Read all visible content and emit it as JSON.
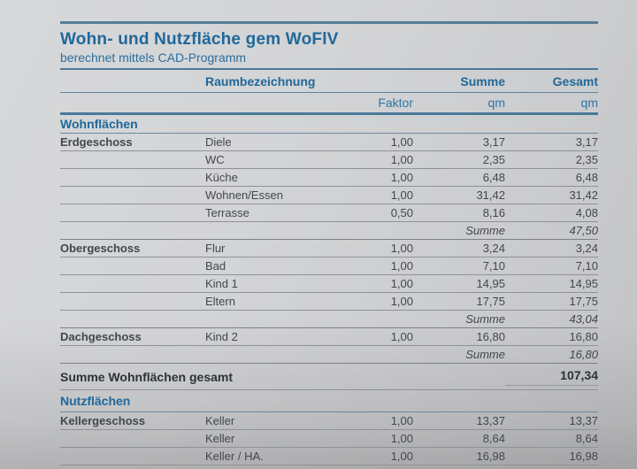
{
  "page": {
    "title": "Wohn- und Nutzfläche gem WoFlV",
    "subtitle": "berechnet mittels CAD-Programm"
  },
  "colors": {
    "accent_blue": "#20689a",
    "line_blue": "#4a7999",
    "line_gray": "#8f9295",
    "text_dark": "#33373b",
    "page_gray": "#cfd0d2"
  },
  "table": {
    "header": {
      "room": "Raumbezeichnung",
      "faktor": "Faktor",
      "summe": "Summe",
      "gesamt": "Gesamt",
      "unit": "qm"
    }
  },
  "sections": [
    {
      "label": "Wohnflächen",
      "groups": [
        {
          "floor": "Erdgeschoss",
          "rooms": [
            {
              "name": "Diele",
              "faktor": "1,00",
              "summe": "3,17",
              "gesamt": "3,17"
            },
            {
              "name": "WC",
              "faktor": "1,00",
              "summe": "2,35",
              "gesamt": "2,35"
            },
            {
              "name": "Küche",
              "faktor": "1,00",
              "summe": "6,48",
              "gesamt": "6,48"
            },
            {
              "name": "Wohnen/Essen",
              "faktor": "1,00",
              "summe": "31,42",
              "gesamt": "31,42"
            },
            {
              "name": "Terrasse",
              "faktor": "0,50",
              "summe": "8,16",
              "gesamt": "4,08"
            }
          ],
          "summe_label": "Summe",
          "summe_value": "47,50"
        },
        {
          "floor": "Obergeschoss",
          "rooms": [
            {
              "name": "Flur",
              "faktor": "1,00",
              "summe": "3,24",
              "gesamt": "3,24"
            },
            {
              "name": "Bad",
              "faktor": "1,00",
              "summe": "7,10",
              "gesamt": "7,10"
            },
            {
              "name": "Kind 1",
              "faktor": "1,00",
              "summe": "14,95",
              "gesamt": "14,95"
            },
            {
              "name": "Eltern",
              "faktor": "1,00",
              "summe": "17,75",
              "gesamt": "17,75"
            }
          ],
          "summe_label": "Summe",
          "summe_value": "43,04"
        },
        {
          "floor": "Dachgeschoss",
          "rooms": [
            {
              "name": "Kind 2",
              "faktor": "1,00",
              "summe": "16,80",
              "gesamt": "16,80"
            }
          ],
          "summe_label": "Summe",
          "summe_value": "16,80"
        }
      ],
      "total": {
        "label": "Summe Wohnflächen gesamt",
        "value": "107,34"
      }
    },
    {
      "label": "Nutzflächen",
      "groups": [
        {
          "floor": "Kellergeschoss",
          "rooms": [
            {
              "name": "Keller",
              "faktor": "1,00",
              "summe": "13,37",
              "gesamt": "13,37"
            },
            {
              "name": "Keller",
              "faktor": "1,00",
              "summe": "8,64",
              "gesamt": "8,64"
            },
            {
              "name": "Keller / HA.",
              "faktor": "1,00",
              "summe": "16,98",
              "gesamt": "16,98"
            }
          ]
        }
      ]
    }
  ]
}
